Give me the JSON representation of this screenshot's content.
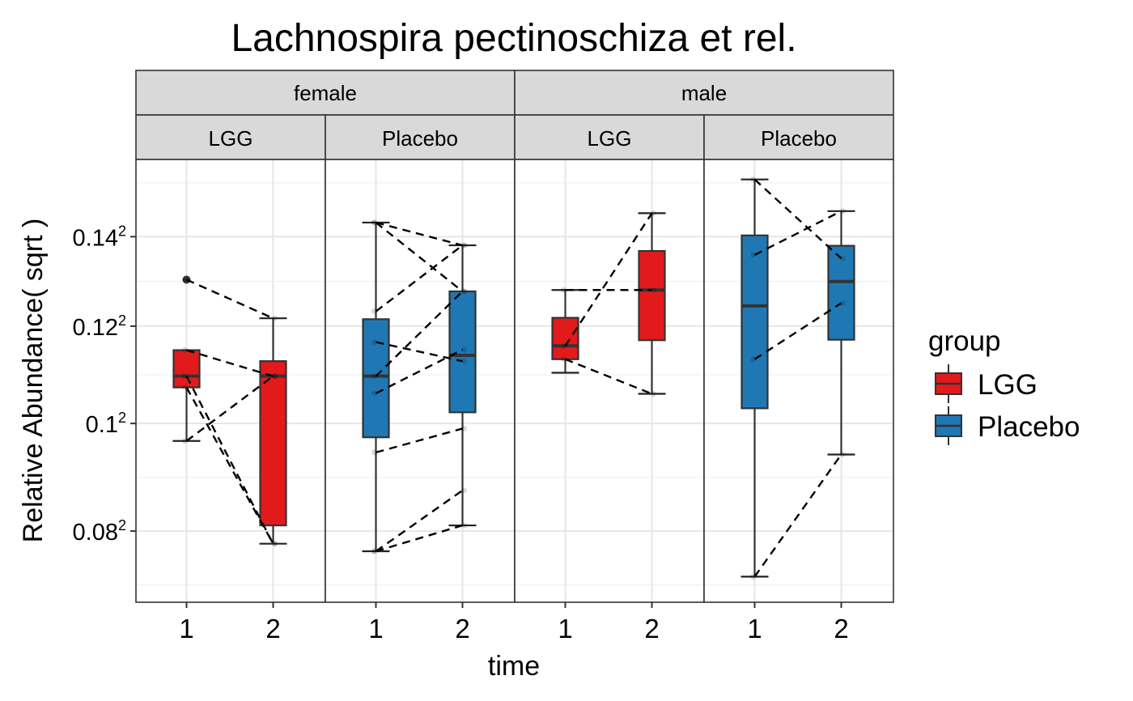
{
  "chart_data": {
    "type": "box",
    "title": "Lachnospira pectinoschiza et rel.",
    "xlabel": "time",
    "ylabel": "Relative Abundance( sqrt )",
    "y_scale": "sqrt",
    "ylim": [
      0.068,
      0.1585
    ],
    "y_ticks": [
      {
        "base": "0.08",
        "exp": "2",
        "value": 0.08
      },
      {
        "base": "0.1",
        "exp": "2",
        "value": 0.1
      },
      {
        "base": "0.12",
        "exp": "2",
        "value": 0.12
      },
      {
        "base": "0.14",
        "exp": "2",
        "value": 0.14
      }
    ],
    "x_categories": [
      "1",
      "2"
    ],
    "facets_top": [
      "female",
      "male"
    ],
    "facets_sub": [
      "LGG",
      "Placebo"
    ],
    "legend": {
      "title": "group",
      "placement": "right",
      "items": [
        {
          "label": "LGG",
          "color": "#E31A1C"
        },
        {
          "label": "Placebo",
          "color": "#1F78B4"
        }
      ]
    },
    "grid": true,
    "panels": [
      {
        "sex": "female",
        "group": "LGG",
        "color": "#E31A1C",
        "boxes": [
          {
            "time": "1",
            "min": 0.0966,
            "q1": 0.1072,
            "median": 0.1095,
            "q3": 0.1149,
            "max": 0.1149,
            "outliers": [
              0.1302
            ]
          },
          {
            "time": "2",
            "min": 0.0778,
            "q1": 0.081,
            "median": 0.1095,
            "q3": 0.1126,
            "max": 0.1217,
            "outliers": []
          }
        ],
        "pairs": [
          [
            0.1302,
            0.1217
          ],
          [
            0.1149,
            0.1095
          ],
          [
            0.0966,
            0.1095
          ],
          [
            0.1095,
            0.0778
          ],
          [
            0.1072,
            0.0778
          ]
        ]
      },
      {
        "sex": "female",
        "group": "Placebo",
        "color": "#1F78B4",
        "boxes": [
          {
            "time": "1",
            "min": 0.0765,
            "q1": 0.0973,
            "median": 0.1095,
            "q3": 0.1215,
            "max": 0.1433,
            "outliers": []
          },
          {
            "time": "2",
            "min": 0.081,
            "q1": 0.1022,
            "median": 0.1138,
            "q3": 0.1276,
            "max": 0.138,
            "outliers": []
          }
        ],
        "pairs": [
          [
            0.1433,
            0.138
          ],
          [
            0.1433,
            0.1276
          ],
          [
            0.1232,
            0.138
          ],
          [
            0.1166,
            0.1126
          ],
          [
            0.1095,
            0.1276
          ],
          [
            0.106,
            0.115
          ],
          [
            0.0944,
            0.099
          ],
          [
            0.0765,
            0.0873
          ],
          [
            0.0765,
            0.081
          ]
        ]
      },
      {
        "sex": "male",
        "group": "LGG",
        "color": "#E31A1C",
        "boxes": [
          {
            "time": "1",
            "min": 0.1102,
            "q1": 0.113,
            "median": 0.1158,
            "q3": 0.1218,
            "max": 0.1279,
            "outliers": []
          },
          {
            "time": "2",
            "min": 0.1059,
            "q1": 0.117,
            "median": 0.1279,
            "q3": 0.1367,
            "max": 0.1455,
            "outliers": []
          }
        ],
        "pairs": [
          [
            0.1279,
            0.1279
          ],
          [
            0.1158,
            0.1455
          ],
          [
            0.113,
            0.1059
          ]
        ]
      },
      {
        "sex": "male",
        "group": "Placebo",
        "color": "#1F78B4",
        "boxes": [
          {
            "time": "1",
            "min": 0.0722,
            "q1": 0.103,
            "median": 0.1244,
            "q3": 0.1403,
            "max": 0.1536,
            "outliers": []
          },
          {
            "time": "2",
            "min": 0.094,
            "q1": 0.1171,
            "median": 0.1298,
            "q3": 0.1379,
            "max": 0.146,
            "outliers": []
          }
        ],
        "pairs": [
          [
            0.1536,
            0.135
          ],
          [
            0.1358,
            0.146
          ],
          [
            0.113,
            0.125
          ],
          [
            0.0722,
            0.094
          ]
        ]
      }
    ]
  }
}
